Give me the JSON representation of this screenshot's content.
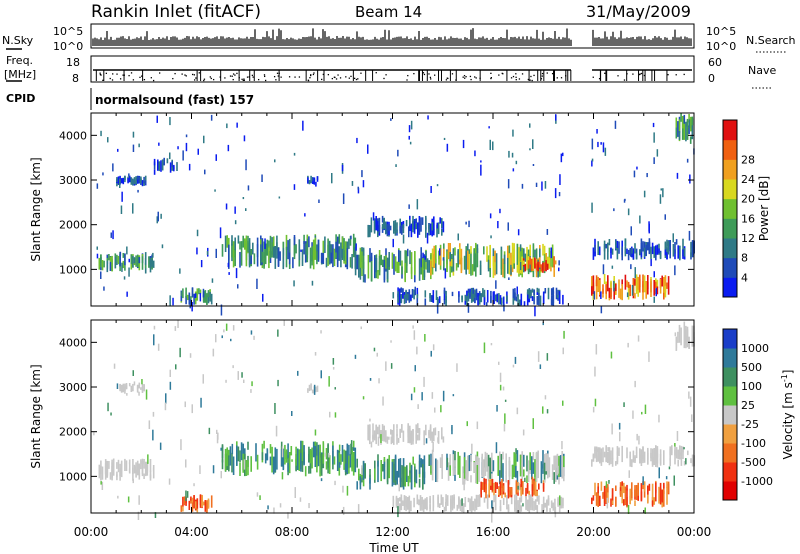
{
  "header": {
    "station": "Rankin Inlet (fitACF)",
    "beam": "Beam 14",
    "date": "31/May/2009"
  },
  "strips": {
    "nsky_label": "N.Sky",
    "nsky_hi": "10^5",
    "nsky_lo": "10^0",
    "nsearch_label": "N.Search",
    "nsearch_hi": "10^5",
    "nsearch_lo": "10^0",
    "freq_label": "Freq.",
    "freq_unit": "[MHz]",
    "freq_hi": "18",
    "freq_lo": "8",
    "nave_label": "Nave",
    "nave_hi": "60",
    "nave_lo": "0",
    "cpid_label": "CPID",
    "cpid_value": "normalsound (fast) 157"
  },
  "chart_data": [
    {
      "type": "heatmap",
      "panel": "power",
      "ylabel": "Slant Range [km]",
      "ylim": [
        180,
        4500
      ],
      "yticks": [
        "1000",
        "2000",
        "3000",
        "4000"
      ],
      "xlabel": "",
      "xticks": [
        "00:00",
        "04:00",
        "08:00",
        "12:00",
        "16:00",
        "20:00",
        "00:00"
      ],
      "colorbar": {
        "label": "Power [dB]",
        "ticks": [
          "4",
          "8",
          "12",
          "16",
          "20",
          "24",
          "28"
        ],
        "colors": [
          "#0a1cf0",
          "#1f4bb8",
          "#2f7a86",
          "#3e9b58",
          "#6fc030",
          "#d8d820",
          "#f0a020",
          "#f06010",
          "#e01010"
        ]
      },
      "echo_regions": [
        {
          "t0": 0.3,
          "t1": 2.5,
          "r0": 900,
          "r1": 1400,
          "level": "medium"
        },
        {
          "t0": 1.0,
          "t1": 2.2,
          "r0": 2850,
          "r1": 3100,
          "level": "low"
        },
        {
          "t0": 2.5,
          "t1": 3.4,
          "r0": 3100,
          "r1": 3500,
          "level": "low"
        },
        {
          "t0": 3.5,
          "t1": 4.8,
          "r0": 180,
          "r1": 600,
          "level": "medium"
        },
        {
          "t0": 5.2,
          "t1": 10.5,
          "r0": 1000,
          "r1": 1800,
          "level": "medium"
        },
        {
          "t0": 8.6,
          "t1": 9.0,
          "r0": 2850,
          "r1": 3100,
          "level": "low"
        },
        {
          "t0": 10.5,
          "t1": 13.5,
          "r0": 700,
          "r1": 1500,
          "level": "medium"
        },
        {
          "t0": 11.0,
          "t1": 14.0,
          "r0": 1700,
          "r1": 2200,
          "level": "low"
        },
        {
          "t0": 13.5,
          "t1": 18.8,
          "r0": 800,
          "r1": 1600,
          "level": "high"
        },
        {
          "t0": 17.0,
          "t1": 18.5,
          "r0": 900,
          "r1": 1300,
          "level": "peak"
        },
        {
          "t0": 12.0,
          "t1": 18.8,
          "r0": 180,
          "r1": 600,
          "level": "low"
        },
        {
          "t0": 19.9,
          "t1": 24.0,
          "r0": 1200,
          "r1": 1700,
          "level": "low"
        },
        {
          "t0": 19.9,
          "t1": 23.0,
          "r0": 300,
          "r1": 900,
          "level": "peak"
        },
        {
          "t0": 23.2,
          "t1": 24.0,
          "r0": 3800,
          "r1": 4500,
          "level": "medium"
        }
      ]
    },
    {
      "type": "heatmap",
      "panel": "velocity",
      "ylabel": "Slant Range [km]",
      "ylim": [
        180,
        4500
      ],
      "yticks": [
        "1000",
        "2000",
        "3000",
        "4000"
      ],
      "xlabel": "Time UT",
      "xticks": [
        "00:00",
        "04:00",
        "08:00",
        "12:00",
        "16:00",
        "20:00",
        "00:00"
      ],
      "colorbar": {
        "label": "Velocity [m s",
        "label_sup": "-1",
        "label_end": "]",
        "ticks": [
          "1000",
          "500",
          "100",
          "25",
          "-25",
          "-100",
          "-500",
          "-1000"
        ],
        "colors": [
          "#1a3ec8",
          "#2f7a9a",
          "#3e9060",
          "#5fc040",
          "#c8c8c8",
          "#f0a040",
          "#f07020",
          "#f03010",
          "#e00000"
        ]
      },
      "echo_regions": [
        {
          "t0": 0.3,
          "t1": 2.5,
          "r0": 900,
          "r1": 1400,
          "level": "ground"
        },
        {
          "t0": 1.0,
          "t1": 2.2,
          "r0": 2850,
          "r1": 3100,
          "level": "ground"
        },
        {
          "t0": 3.5,
          "t1": 4.8,
          "r0": 180,
          "r1": 600,
          "level": "away"
        },
        {
          "t0": 5.2,
          "t1": 10.5,
          "r0": 1000,
          "r1": 1800,
          "level": "toward"
        },
        {
          "t0": 8.6,
          "t1": 9.0,
          "r0": 2850,
          "r1": 3100,
          "level": "ground"
        },
        {
          "t0": 10.5,
          "t1": 13.5,
          "r0": 700,
          "r1": 1500,
          "level": "toward"
        },
        {
          "t0": 11.0,
          "t1": 14.0,
          "r0": 1700,
          "r1": 2200,
          "level": "ground"
        },
        {
          "t0": 13.5,
          "t1": 18.8,
          "r0": 800,
          "r1": 1600,
          "level": "mixed"
        },
        {
          "t0": 15.5,
          "t1": 18.0,
          "r0": 500,
          "r1": 1000,
          "level": "away"
        },
        {
          "t0": 12.0,
          "t1": 18.8,
          "r0": 180,
          "r1": 600,
          "level": "ground"
        },
        {
          "t0": 19.9,
          "t1": 24.0,
          "r0": 1200,
          "r1": 1700,
          "level": "ground"
        },
        {
          "t0": 19.9,
          "t1": 23.0,
          "r0": 300,
          "r1": 900,
          "level": "away"
        },
        {
          "t0": 23.2,
          "t1": 24.0,
          "r0": 3800,
          "r1": 4500,
          "level": "ground"
        }
      ]
    }
  ]
}
